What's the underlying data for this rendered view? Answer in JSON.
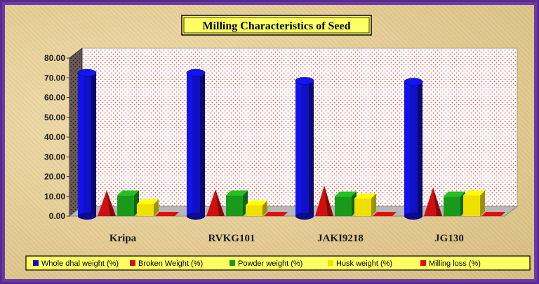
{
  "chart_data": {
    "type": "bar",
    "title": "Milling Characteristics of Seed",
    "xlabel": "",
    "ylabel": "",
    "categories": [
      "Kripa",
      "RVKG101",
      "JAKI9218",
      "JG130"
    ],
    "ylim": [
      0,
      80
    ],
    "yticks": [
      "0.00",
      "10.00",
      "20.00",
      "30.00",
      "40.00",
      "50.00",
      "60.00",
      "70.00",
      "80.00"
    ],
    "grid": false,
    "legend_position": "bottom",
    "series": [
      {
        "name": "Whole dhal weight (%)",
        "color": "#1010c8",
        "shape": "cylinder",
        "values": [
          72.5,
          72.5,
          68.5,
          68.0
        ]
      },
      {
        "name": "Broken Weight (%)",
        "color": "#d01010",
        "shape": "cone",
        "values": [
          13.0,
          13.5,
          15.5,
          14.5
        ]
      },
      {
        "name": "Powder weight (%)",
        "color": "#1a9a1a",
        "shape": "box",
        "values": [
          10.5,
          10.5,
          10.0,
          10.0
        ]
      },
      {
        "name": "Husk weight (%)",
        "color": "#f0e000",
        "shape": "box",
        "values": [
          6.0,
          5.5,
          9.0,
          10.5
        ]
      },
      {
        "name": "Milling loss (%)",
        "color": "#e01010",
        "shape": "flat",
        "values": [
          0.5,
          0.5,
          0.5,
          0.5
        ]
      }
    ]
  }
}
